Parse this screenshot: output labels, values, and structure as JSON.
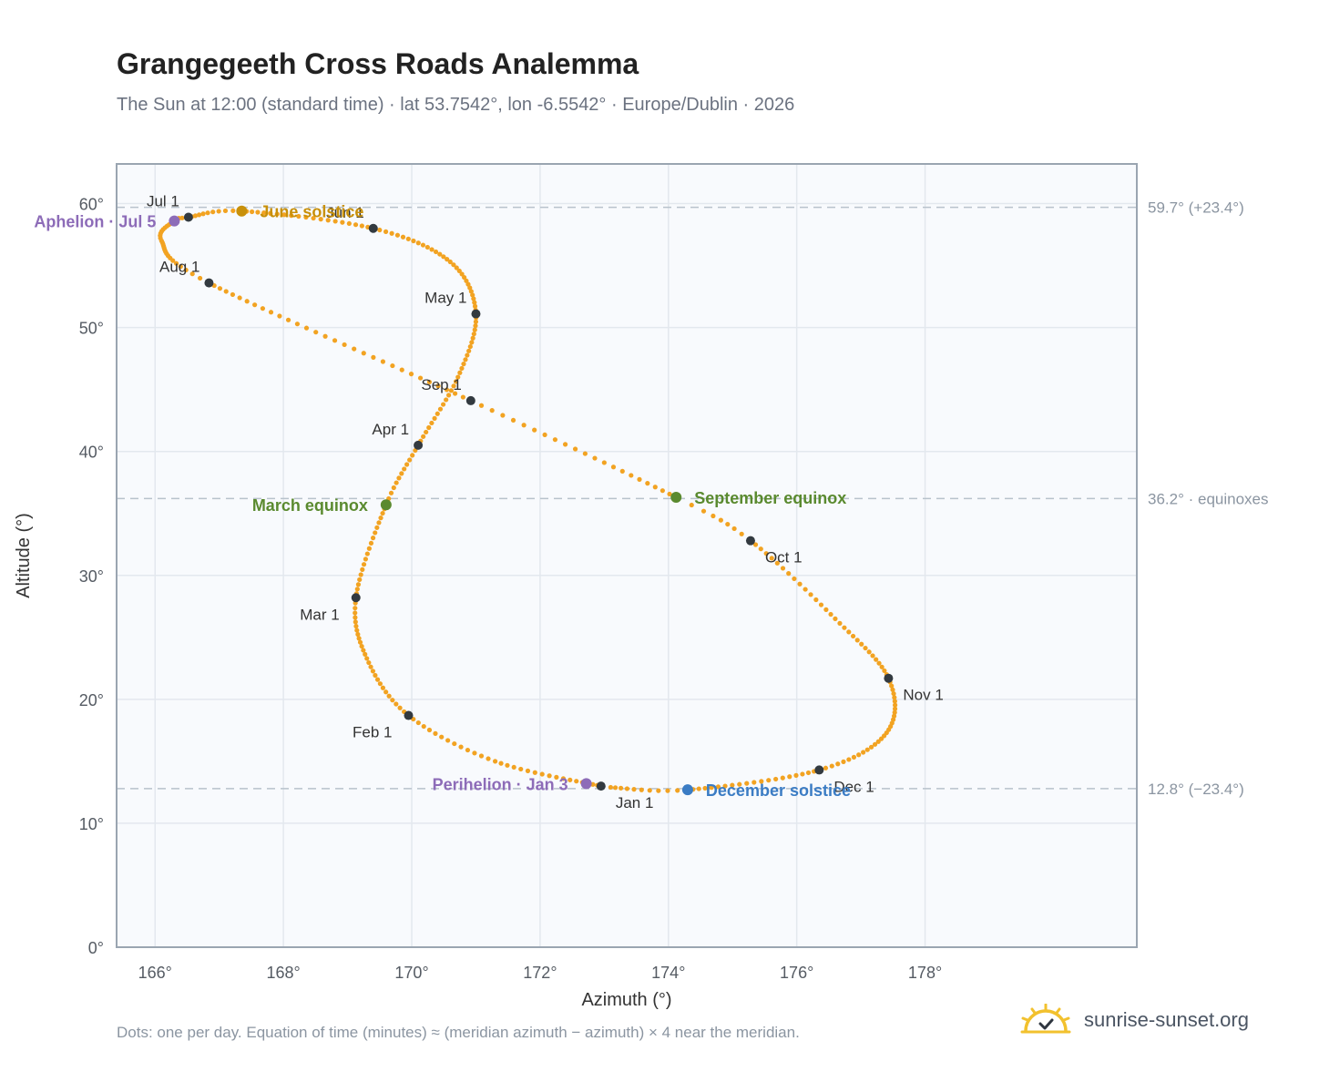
{
  "header": {
    "title": "Grangegeeth Cross Roads Analemma",
    "subtitle": "The Sun at 12:00 (standard time) · lat 53.7542°, lon -6.5542° · Europe/Dublin · 2026"
  },
  "footer": {
    "note": "Dots: one per day. Equation of time (minutes) ≈ (meridian azimuth − azimuth) × 4 near the meridian.",
    "brand": "sunrise-sunset.org",
    "brand_icon": "sun-logo-icon"
  },
  "colors": {
    "curve": "#f2a322",
    "month_marker": "#333a40",
    "june_solstice": "#c8900a",
    "december_solstice": "#3b7cc4",
    "equinox": "#5a8a2f",
    "apsis": "#8d6cb8",
    "plot_bg": "#f8fafd",
    "grid": "#e3e8ee",
    "ref_line": "#b8c2cc"
  },
  "chart_data": {
    "type": "scatter",
    "title": "Grangegeeth Cross Roads Analemma",
    "xlabel": "Azimuth (°)",
    "ylabel": "Altitude (°)",
    "xlim": [
      165.4,
      181.3
    ],
    "ylim": [
      0,
      63.2
    ],
    "xticks": [
      166,
      168,
      170,
      172,
      174,
      176,
      178
    ],
    "yticks": [
      0,
      10,
      20,
      30,
      40,
      50,
      60
    ],
    "xtick_labels": [
      "166°",
      "168°",
      "170°",
      "172°",
      "174°",
      "176°",
      "178°"
    ],
    "ytick_labels": [
      "0°",
      "10°",
      "20°",
      "30°",
      "40°",
      "50°",
      "60°"
    ],
    "grid": true,
    "reference_lines": [
      {
        "y": 59.7,
        "label": "59.7° (+23.4°)"
      },
      {
        "y": 36.2,
        "label": "36.2° · equinoxes"
      },
      {
        "y": 12.8,
        "label": "12.8° (−23.4°)"
      }
    ],
    "series": [
      {
        "type": "daily",
        "keypoints": [
          {
            "day": 1,
            "az": 172.95,
            "alt": 13.0
          },
          {
            "day": 18,
            "az": 171.3,
            "alt": 15.0
          },
          {
            "day": 32,
            "az": 169.95,
            "alt": 18.7
          },
          {
            "day": 46,
            "az": 169.3,
            "alt": 23.3
          },
          {
            "day": 60,
            "az": 169.13,
            "alt": 28.2
          },
          {
            "day": 79,
            "az": 169.6,
            "alt": 35.7
          },
          {
            "day": 91,
            "az": 170.1,
            "alt": 40.5
          },
          {
            "day": 106,
            "az": 170.72,
            "alt": 46.0
          },
          {
            "day": 121,
            "az": 171.0,
            "alt": 51.1
          },
          {
            "day": 136,
            "az": 170.6,
            "alt": 55.3
          },
          {
            "day": 152,
            "az": 169.4,
            "alt": 58.0
          },
          {
            "day": 172,
            "az": 167.35,
            "alt": 59.4
          },
          {
            "day": 182,
            "az": 166.52,
            "alt": 58.9
          },
          {
            "day": 186,
            "az": 166.3,
            "alt": 58.6
          },
          {
            "day": 197,
            "az": 166.1,
            "alt": 57.0
          },
          {
            "day": 213,
            "az": 166.84,
            "alt": 53.6
          },
          {
            "day": 244,
            "az": 170.92,
            "alt": 44.1
          },
          {
            "day": 266,
            "az": 174.12,
            "alt": 36.3
          },
          {
            "day": 274,
            "az": 175.28,
            "alt": 32.8
          },
          {
            "day": 290,
            "az": 176.6,
            "alt": 26.5
          },
          {
            "day": 305,
            "az": 177.43,
            "alt": 21.7
          },
          {
            "day": 320,
            "az": 177.4,
            "alt": 17.3
          },
          {
            "day": 335,
            "az": 176.35,
            "alt": 14.3
          },
          {
            "day": 355,
            "az": 174.3,
            "alt": 12.7
          },
          {
            "day": 365,
            "az": 173.1,
            "alt": 12.9
          }
        ]
      }
    ],
    "month_markers": [
      {
        "label": "Jan 1",
        "az": 172.95,
        "alt": 13.0,
        "anchor": "below-right"
      },
      {
        "label": "Feb 1",
        "az": 169.95,
        "alt": 18.7,
        "anchor": "below-left"
      },
      {
        "label": "Mar 1",
        "az": 169.13,
        "alt": 28.2,
        "anchor": "below-left"
      },
      {
        "label": "Apr 1",
        "az": 170.1,
        "alt": 40.5,
        "anchor": "above-left"
      },
      {
        "label": "May 1",
        "az": 171.0,
        "alt": 51.1,
        "anchor": "above-left"
      },
      {
        "label": "Jun 1",
        "az": 169.4,
        "alt": 58.0,
        "anchor": "above-left"
      },
      {
        "label": "Jul 1",
        "az": 166.52,
        "alt": 58.9,
        "anchor": "above-left"
      },
      {
        "label": "Aug 1",
        "az": 166.84,
        "alt": 53.6,
        "anchor": "above-left"
      },
      {
        "label": "Sep 1",
        "az": 170.92,
        "alt": 44.1,
        "anchor": "above-left"
      },
      {
        "label": "Oct 1",
        "az": 175.28,
        "alt": 32.8,
        "anchor": "below-right"
      },
      {
        "label": "Nov 1",
        "az": 177.43,
        "alt": 21.7,
        "anchor": "below-right"
      },
      {
        "label": "Dec 1",
        "az": 176.35,
        "alt": 14.3,
        "anchor": "below-right"
      }
    ],
    "events": [
      {
        "label": "June solstice",
        "az": 167.35,
        "alt": 59.4,
        "color_key": "june_solstice",
        "anchor": "right"
      },
      {
        "label": "December solstice",
        "az": 174.3,
        "alt": 12.7,
        "color_key": "december_solstice",
        "anchor": "right"
      },
      {
        "label": "March equinox",
        "az": 169.6,
        "alt": 35.7,
        "color_key": "equinox",
        "anchor": "left"
      },
      {
        "label": "September equinox",
        "az": 174.12,
        "alt": 36.3,
        "color_key": "equinox",
        "anchor": "right"
      },
      {
        "label": "Aphelion · Jul 5",
        "az": 166.3,
        "alt": 58.6,
        "color_key": "apsis",
        "anchor": "left"
      },
      {
        "label": "Perihelion · Jan 3",
        "az": 172.72,
        "alt": 13.2,
        "color_key": "apsis",
        "anchor": "left"
      }
    ]
  }
}
